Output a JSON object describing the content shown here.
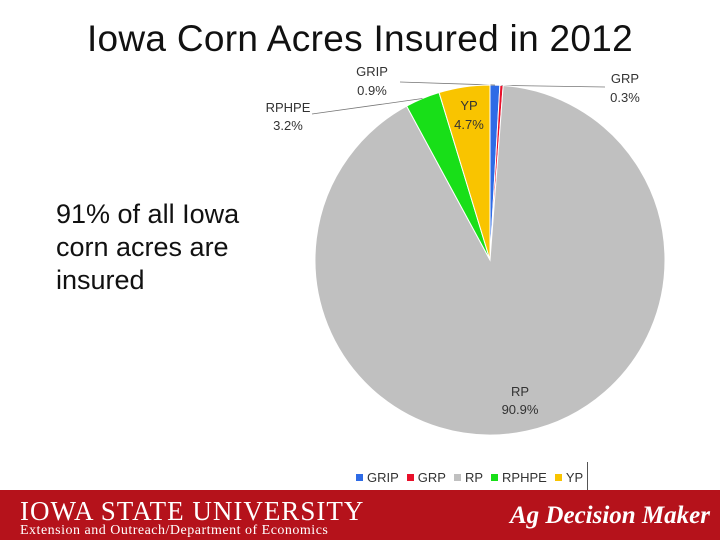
{
  "slide": {
    "title": "Iowa Corn Acres Insured in 2012",
    "callout": "91% of all Iowa corn acres are insured"
  },
  "chart_data": {
    "type": "pie",
    "title": "",
    "start_angle_deg": 90,
    "direction": "clockwise",
    "slices": [
      {
        "name": "GRIP",
        "value": 0.9,
        "label": "0.9%",
        "color": "#2e6be6"
      },
      {
        "name": "GRP",
        "value": 0.3,
        "label": "0.3%",
        "color": "#e8102a"
      },
      {
        "name": "RP",
        "value": 90.9,
        "label": "90.9%",
        "color": "#c0c0c0"
      },
      {
        "name": "RPHPE",
        "value": 3.2,
        "label": "3.2%",
        "color": "#18df18"
      },
      {
        "name": "YP",
        "value": 4.7,
        "label": "4.7%",
        "color": "#f9c400"
      }
    ],
    "legend": [
      "GRIP",
      "GRP",
      "RP",
      "RPHPE",
      "YP"
    ],
    "legend_position": "bottom"
  },
  "footer": {
    "university": "IOWA STATE UNIVERSITY",
    "department": "Extension and Outreach/Department of Economics",
    "brand": "Ag Decision Maker",
    "color": "#b5121b"
  }
}
